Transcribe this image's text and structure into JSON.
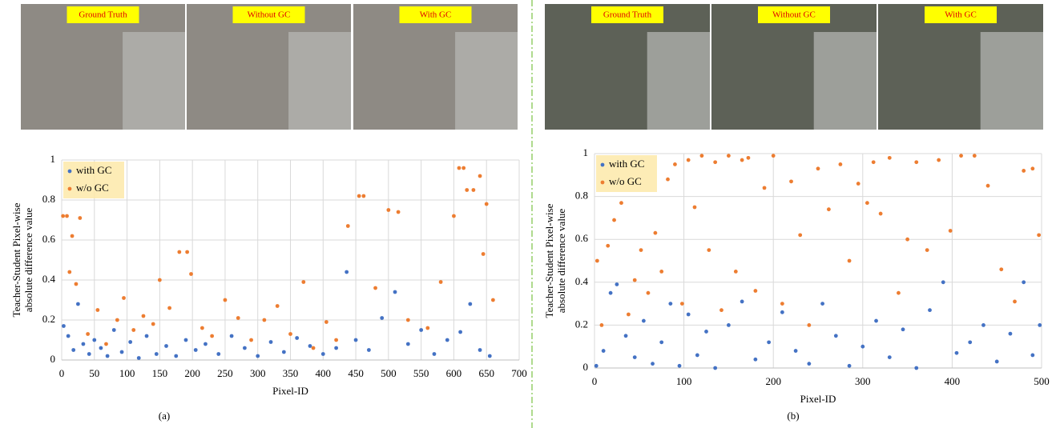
{
  "figure": {
    "panels_a": [
      "Ground Truth",
      "Without GC",
      "With GC"
    ],
    "panels_b": [
      "Ground Truth",
      "Without GC",
      "With GC"
    ],
    "captions": [
      "(a)",
      "(b)"
    ]
  },
  "chart_data": [
    {
      "type": "scatter",
      "xlabel": "Pixel-ID",
      "ylabel": [
        "Teacher-Student Pixel-wise",
        "absolute difference value"
      ],
      "xlim": [
        0,
        700
      ],
      "xticks": [
        0,
        50,
        100,
        150,
        200,
        250,
        300,
        350,
        400,
        450,
        500,
        550,
        600,
        650,
        700
      ],
      "ylim": [
        0,
        1
      ],
      "yticks": [
        0,
        0.2,
        0.4,
        0.6,
        0.8,
        1
      ],
      "grid": true,
      "legend": "upper left",
      "series": [
        {
          "name": "with GC",
          "color": "#4472c4",
          "x": [
            3,
            10,
            18,
            25,
            33,
            42,
            50,
            60,
            70,
            80,
            92,
            105,
            118,
            130,
            145,
            160,
            175,
            190,
            205,
            220,
            240,
            260,
            280,
            300,
            320,
            340,
            360,
            380,
            400,
            420,
            436,
            450,
            470,
            490,
            510,
            530,
            550,
            570,
            590,
            610,
            625,
            640,
            655
          ],
          "values": [
            0.17,
            0.12,
            0.05,
            0.28,
            0.08,
            0.03,
            0.1,
            0.06,
            0.02,
            0.15,
            0.04,
            0.09,
            0.01,
            0.12,
            0.03,
            0.07,
            0.02,
            0.1,
            0.05,
            0.08,
            0.03,
            0.12,
            0.06,
            0.02,
            0.09,
            0.04,
            0.11,
            0.07,
            0.03,
            0.06,
            0.44,
            0.1,
            0.05,
            0.21,
            0.34,
            0.08,
            0.15,
            0.03,
            0.1,
            0.14,
            0.28,
            0.05,
            0.02
          ]
        },
        {
          "name": "w/o GC",
          "color": "#ed7d31",
          "x": [
            2,
            8,
            12,
            16,
            22,
            28,
            40,
            55,
            68,
            85,
            95,
            110,
            125,
            140,
            150,
            165,
            180,
            192,
            198,
            215,
            230,
            250,
            270,
            290,
            310,
            330,
            350,
            370,
            385,
            405,
            420,
            438,
            455,
            462,
            480,
            500,
            515,
            530,
            560,
            580,
            600,
            608,
            615,
            620,
            630,
            640,
            645,
            650,
            660
          ],
          "values": [
            0.72,
            0.72,
            0.44,
            0.62,
            0.38,
            0.71,
            0.13,
            0.25,
            0.08,
            0.2,
            0.31,
            0.15,
            0.22,
            0.18,
            0.4,
            0.26,
            0.54,
            0.54,
            0.43,
            0.16,
            0.12,
            0.3,
            0.21,
            0.1,
            0.2,
            0.27,
            0.13,
            0.39,
            0.06,
            0.19,
            0.1,
            0.67,
            0.82,
            0.82,
            0.36,
            0.75,
            0.74,
            0.2,
            0.16,
            0.39,
            0.72,
            0.96,
            0.96,
            0.85,
            0.85,
            0.92,
            0.53,
            0.78,
            0.3
          ]
        }
      ]
    },
    {
      "type": "scatter",
      "xlabel": "Pixel-ID",
      "ylabel": [
        "Teacher-Student Pixel-wise",
        "absolute difference value"
      ],
      "xlim": [
        0,
        500
      ],
      "xticks": [
        0,
        100,
        200,
        300,
        400,
        500
      ],
      "ylim": [
        0,
        1
      ],
      "yticks": [
        0,
        0.2,
        0.4,
        0.6,
        0.8,
        1
      ],
      "grid": true,
      "legend": "upper left",
      "series": [
        {
          "name": "with GC",
          "color": "#4472c4",
          "x": [
            2,
            10,
            18,
            25,
            35,
            45,
            55,
            65,
            75,
            85,
            95,
            105,
            115,
            125,
            135,
            150,
            165,
            180,
            195,
            210,
            225,
            240,
            255,
            270,
            285,
            300,
            315,
            330,
            345,
            360,
            375,
            390,
            405,
            420,
            435,
            450,
            465,
            480,
            490,
            498
          ],
          "values": [
            0.01,
            0.08,
            0.35,
            0.39,
            0.15,
            0.05,
            0.22,
            0.02,
            0.12,
            0.3,
            0.01,
            0.25,
            0.06,
            0.17,
            0.0,
            0.2,
            0.31,
            0.04,
            0.12,
            0.26,
            0.08,
            0.02,
            0.3,
            0.15,
            0.01,
            0.1,
            0.22,
            0.05,
            0.18,
            0.0,
            0.27,
            0.4,
            0.07,
            0.12,
            0.2,
            0.03,
            0.16,
            0.4,
            0.06,
            0.2
          ]
        },
        {
          "name": "w/o GC",
          "color": "#ed7d31",
          "x": [
            3,
            8,
            15,
            22,
            30,
            38,
            45,
            52,
            60,
            68,
            75,
            82,
            90,
            98,
            105,
            112,
            120,
            128,
            135,
            142,
            150,
            158,
            165,
            172,
            180,
            190,
            200,
            210,
            220,
            230,
            240,
            250,
            262,
            275,
            285,
            295,
            305,
            312,
            320,
            330,
            340,
            350,
            360,
            372,
            385,
            398,
            410,
            425,
            440,
            455,
            470,
            480,
            490,
            497
          ],
          "values": [
            0.5,
            0.2,
            0.57,
            0.69,
            0.77,
            0.25,
            0.41,
            0.55,
            0.35,
            0.63,
            0.45,
            0.88,
            0.95,
            0.3,
            0.97,
            0.75,
            0.99,
            0.55,
            0.96,
            0.27,
            0.99,
            0.45,
            0.97,
            0.98,
            0.36,
            0.84,
            0.99,
            0.3,
            0.87,
            0.62,
            0.2,
            0.93,
            0.74,
            0.95,
            0.5,
            0.86,
            0.77,
            0.96,
            0.72,
            0.98,
            0.35,
            0.6,
            0.96,
            0.55,
            0.97,
            0.64,
            0.99,
            0.99,
            0.85,
            0.46,
            0.31,
            0.92,
            0.93,
            0.62
          ]
        }
      ]
    }
  ]
}
